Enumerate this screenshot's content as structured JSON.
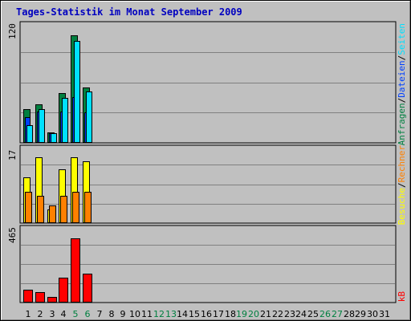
{
  "title": "Tages-Statistik im Monat September 2009",
  "colors": {
    "anfragen": "#008040",
    "dateien": "#0040ff",
    "seiten": "#00e0ff",
    "besuche": "#ffff00",
    "rechner": "#ff8000",
    "kb": "#ff0000",
    "grid": "#808080",
    "weekend_label": "#008040",
    "label": "#000000"
  },
  "legend_right": {
    "top": [
      "Anfragen",
      "Dateien",
      "Seiten"
    ],
    "middle": [
      "Besuche",
      "Rechner"
    ],
    "bottom": [
      "kB"
    ],
    "separator": "/"
  },
  "chart_data": [
    {
      "type": "bar",
      "panel": "top",
      "categories": [
        "1",
        "2",
        "3",
        "4",
        "5",
        "6",
        "7",
        "8",
        "9",
        "10",
        "11",
        "12",
        "13",
        "14",
        "15",
        "16",
        "17",
        "18",
        "19",
        "20",
        "21",
        "22",
        "23",
        "24",
        "25",
        "26",
        "27",
        "28",
        "29",
        "30",
        "31"
      ],
      "weekend_days": [
        "5",
        "6",
        "12",
        "13",
        "19",
        "20",
        "26",
        "27"
      ],
      "max_label": "120",
      "ylim": [
        0,
        120
      ],
      "series": [
        {
          "name": "Anfragen",
          "values": [
            37,
            42,
            11,
            55,
            119,
            61,
            0,
            0,
            0,
            0,
            0,
            0,
            0,
            0,
            0,
            0,
            0,
            0,
            0,
            0,
            0,
            0,
            0,
            0,
            0,
            0,
            0,
            0,
            0,
            0,
            0
          ]
        },
        {
          "name": "Dateien",
          "values": [
            28,
            34,
            10,
            34,
            50,
            33,
            0,
            0,
            0,
            0,
            0,
            0,
            0,
            0,
            0,
            0,
            0,
            0,
            0,
            0,
            0,
            0,
            0,
            0,
            0,
            0,
            0,
            0,
            0,
            0,
            0
          ]
        },
        {
          "name": "Seiten",
          "values": [
            19,
            37,
            10,
            49,
            113,
            56,
            0,
            0,
            0,
            0,
            0,
            0,
            0,
            0,
            0,
            0,
            0,
            0,
            0,
            0,
            0,
            0,
            0,
            0,
            0,
            0,
            0,
            0,
            0,
            0,
            0
          ]
        }
      ]
    },
    {
      "type": "bar",
      "panel": "middle",
      "categories": [
        "1",
        "2",
        "3",
        "4",
        "5",
        "6",
        "7",
        "8",
        "9",
        "10",
        "11",
        "12",
        "13",
        "14",
        "15",
        "16",
        "17",
        "18",
        "19",
        "20",
        "21",
        "22",
        "23",
        "24",
        "25",
        "26",
        "27",
        "28",
        "29",
        "30",
        "31"
      ],
      "max_label": "17",
      "ylim": [
        0,
        17
      ],
      "series": [
        {
          "name": "Besuche",
          "values": [
            11.5,
            16.5,
            3.2,
            13.5,
            16.5,
            15.5,
            0,
            0,
            0,
            0,
            0,
            0,
            0,
            0,
            0,
            0,
            0,
            0,
            0,
            0,
            0,
            0,
            0,
            0,
            0,
            0,
            0,
            0,
            0,
            0,
            0
          ]
        },
        {
          "name": "Rechner",
          "values": [
            7.8,
            6.8,
            4.2,
            6.8,
            7.8,
            7.8,
            0,
            0,
            0,
            0,
            0,
            0,
            0,
            0,
            0,
            0,
            0,
            0,
            0,
            0,
            0,
            0,
            0,
            0,
            0,
            0,
            0,
            0,
            0,
            0,
            0
          ]
        }
      ]
    },
    {
      "type": "bar",
      "panel": "bottom",
      "categories": [
        "1",
        "2",
        "3",
        "4",
        "5",
        "6",
        "7",
        "8",
        "9",
        "10",
        "11",
        "12",
        "13",
        "14",
        "15",
        "16",
        "17",
        "18",
        "19",
        "20",
        "21",
        "22",
        "23",
        "24",
        "25",
        "26",
        "27",
        "28",
        "29",
        "30",
        "31"
      ],
      "max_label": "465",
      "ylim": [
        0,
        465
      ],
      "series": [
        {
          "name": "kB",
          "values": [
            88,
            70,
            35,
            175,
            465,
            205,
            0,
            0,
            0,
            0,
            0,
            0,
            0,
            0,
            0,
            0,
            0,
            0,
            0,
            0,
            0,
            0,
            0,
            0,
            0,
            0,
            0,
            0,
            0,
            0,
            0
          ]
        }
      ]
    }
  ]
}
